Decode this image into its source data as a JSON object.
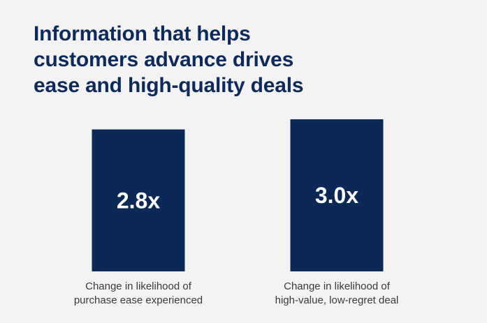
{
  "chart_data": {
    "type": "bar",
    "title_lines": [
      "Information that helps",
      "customers advance drives",
      "ease and high-quality deals"
    ],
    "xlabel": "",
    "ylabel": "",
    "categories": [
      [
        "Change in likelihood of",
        "purchase ease experienced"
      ],
      [
        "Change in likelihood of",
        "high-value, low-regret deal"
      ]
    ],
    "values": [
      2.8,
      3.0
    ],
    "data_labels": [
      "2.8x",
      "3.0x"
    ],
    "ylim": [
      0,
      3.0
    ],
    "grid": false,
    "legend": "none"
  },
  "colors": {
    "title": "#0c2a5c",
    "bar": "#0b2857",
    "bar_label": "#ffffff",
    "category_text": "#3a3a3a",
    "background": "#f3f3f3"
  }
}
